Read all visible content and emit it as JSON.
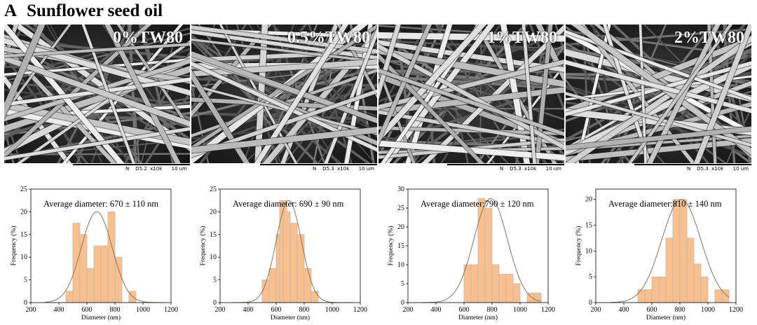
{
  "figure": {
    "panel_label": "A",
    "title": "Sunflower seed oil"
  },
  "panels": [
    {
      "label": "0%TW80",
      "scale_meta": "N    D5.2  x10k      10 um"
    },
    {
      "label": "0.5%TW80",
      "scale_meta": "N    D5.3  x10k      10 um"
    },
    {
      "label": "1%TW80",
      "scale_meta": "N    D5.3  x10k      10 um"
    },
    {
      "label": "2%TW80",
      "scale_meta": "N    D5.3  x10k      10 um"
    }
  ],
  "chart_data": [
    {
      "type": "bar",
      "annotation": "Average diameter: 670 ± 110 nm",
      "xlabel": "Diameter (nm)",
      "ylabel": "Frequency (%)",
      "xlim": [
        200,
        1200
      ],
      "ylim": [
        0,
        25
      ],
      "xticks": [
        200,
        400,
        600,
        800,
        1000,
        1200
      ],
      "yticks": [
        0,
        5,
        10,
        15,
        20,
        25
      ],
      "bin_width": 50,
      "bins": [
        {
          "x": 450,
          "value": 2.5
        },
        {
          "x": 500,
          "value": 17.5
        },
        {
          "x": 550,
          "value": 15
        },
        {
          "x": 600,
          "value": 7.5
        },
        {
          "x": 650,
          "value": 12.5
        },
        {
          "x": 700,
          "value": 12.5
        },
        {
          "x": 750,
          "value": 20
        },
        {
          "x": 800,
          "value": 10
        },
        {
          "x": 900,
          "value": 2.5
        }
      ],
      "fit": {
        "mean": 670,
        "sd": 110,
        "peak": 20
      }
    },
    {
      "type": "bar",
      "annotation": "Average  diameter: 690 ± 90 nm",
      "xlabel": "Diameter (nm)",
      "ylabel": "Frequency (%)",
      "xlim": [
        200,
        1200
      ],
      "ylim": [
        0,
        25
      ],
      "xticks": [
        200,
        400,
        600,
        800,
        1000,
        1200
      ],
      "yticks": [
        0,
        5,
        10,
        15,
        20,
        25
      ],
      "bin_width": 50,
      "bins": [
        {
          "x": 500,
          "value": 5
        },
        {
          "x": 550,
          "value": 7.5
        },
        {
          "x": 600,
          "value": 15
        },
        {
          "x": 625,
          "value": 22.5
        },
        {
          "x": 650,
          "value": 20
        },
        {
          "x": 700,
          "value": 17.5
        },
        {
          "x": 750,
          "value": 15
        },
        {
          "x": 800,
          "value": 7.5
        },
        {
          "x": 850,
          "value": 2.5
        }
      ],
      "fit": {
        "mean": 690,
        "sd": 90,
        "peak": 22.5
      }
    },
    {
      "type": "bar",
      "annotation": "Average  diameter:790 ± 120 nm",
      "xlabel": "Diameter (nm)",
      "ylabel": "Frequency (%)",
      "xlim": [
        200,
        1200
      ],
      "ylim": [
        0,
        30
      ],
      "xticks": [
        200,
        400,
        600,
        800,
        1000,
        1200
      ],
      "yticks": [
        0,
        5,
        10,
        15,
        20,
        25,
        30
      ],
      "bin_width": 50,
      "bins": [
        {
          "x": 600,
          "value": 10
        },
        {
          "x": 650,
          "value": 10
        },
        {
          "x": 700,
          "value": 27.5
        },
        {
          "x": 750,
          "value": 25
        },
        {
          "x": 800,
          "value": 10
        },
        {
          "x": 850,
          "value": 7.5
        },
        {
          "x": 900,
          "value": 7.5
        },
        {
          "x": 950,
          "value": 5
        },
        {
          "x": 1050,
          "value": 2.5
        },
        {
          "x": 1100,
          "value": 2.5
        }
      ],
      "fit": {
        "mean": 790,
        "sd": 120,
        "peak": 27.5
      }
    },
    {
      "type": "bar",
      "annotation": "Average  diameter:810 ± 140 nm",
      "xlabel": "Diameter (nm)",
      "ylabel": "Frequency (%)",
      "xlim": [
        200,
        1200
      ],
      "ylim": [
        0,
        22
      ],
      "xticks": [
        200,
        400,
        600,
        800,
        1000,
        1200
      ],
      "yticks": [
        0,
        5,
        10,
        15,
        20
      ],
      "bin_width": 50,
      "bins": [
        {
          "x": 500,
          "value": 2.5
        },
        {
          "x": 550,
          "value": 2.5
        },
        {
          "x": 600,
          "value": 5
        },
        {
          "x": 650,
          "value": 5
        },
        {
          "x": 700,
          "value": 12.5
        },
        {
          "x": 750,
          "value": 20
        },
        {
          "x": 800,
          "value": 20
        },
        {
          "x": 850,
          "value": 12.5
        },
        {
          "x": 900,
          "value": 7.5
        },
        {
          "x": 950,
          "value": 5
        },
        {
          "x": 1050,
          "value": 2.5
        },
        {
          "x": 1100,
          "value": 2.5
        }
      ],
      "fit": {
        "mean": 810,
        "sd": 140,
        "peak": 20
      }
    }
  ]
}
